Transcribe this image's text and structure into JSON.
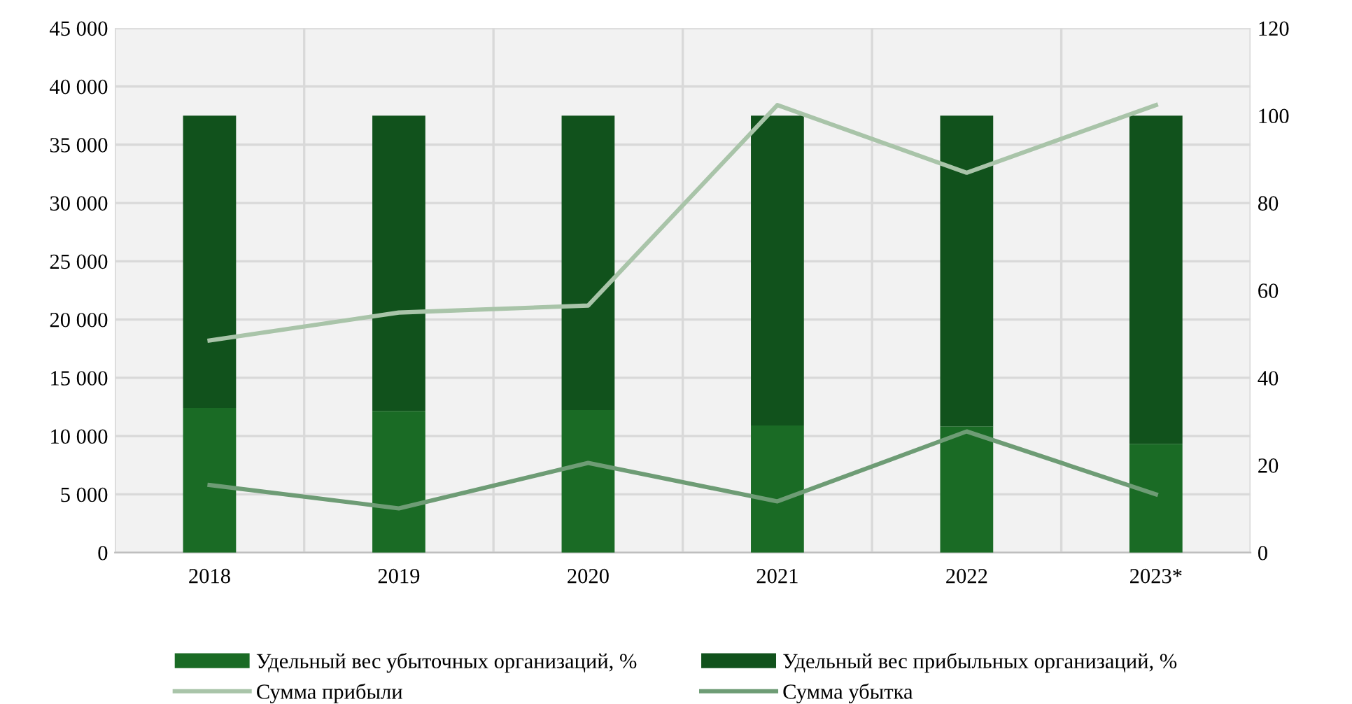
{
  "chart_data": {
    "type": "bar",
    "stacked": true,
    "categories": [
      "2018",
      "2019",
      "2020",
      "2021",
      "2022",
      "2023*"
    ],
    "series": [
      {
        "name": "Удельный вес убыточных организаций, %",
        "axis": "y2",
        "color": "#1a6b25",
        "values": [
          33.1,
          32.4,
          32.6,
          29.1,
          28.9,
          24.9
        ]
      },
      {
        "name": "Удельный вес прибыльных организаций, %",
        "axis": "y2",
        "color": "#11521c",
        "values": [
          66.9,
          67.6,
          67.4,
          70.9,
          71.1,
          75.1
        ]
      },
      {
        "name": "Сумма прибыли",
        "type": "line",
        "axis": "y",
        "color": "#a9c4a9",
        "values": [
          18200,
          20600,
          21200,
          38400,
          32600,
          38400
        ]
      },
      {
        "name": "Сумма убытка",
        "type": "line",
        "axis": "y",
        "color": "#6e9c75",
        "values": [
          5800,
          3800,
          7700,
          4400,
          10400,
          5000
        ]
      }
    ],
    "ylim": [
      0,
      45000
    ],
    "yticks": [
      0,
      {
        "value": 5000,
        "label": "5 000"
      },
      {
        "value": 10000,
        "label": "10 000"
      },
      {
        "value": 15000,
        "label": "15 000"
      },
      {
        "value": 20000,
        "label": "20 000"
      },
      {
        "value": 25000,
        "label": "25 000"
      },
      {
        "value": 30000,
        "label": "30 000"
      },
      {
        "value": 35000,
        "label": "35 000"
      },
      {
        "value": 40000,
        "label": "40 000"
      },
      {
        "value": 45000,
        "label": "45 000"
      }
    ],
    "y2lim": [
      0,
      120
    ],
    "y2ticks": [
      0,
      20,
      40,
      60,
      80,
      100,
      120
    ],
    "grid": true,
    "legend": "bottom",
    "marker": "none",
    "line_style": "solid"
  }
}
